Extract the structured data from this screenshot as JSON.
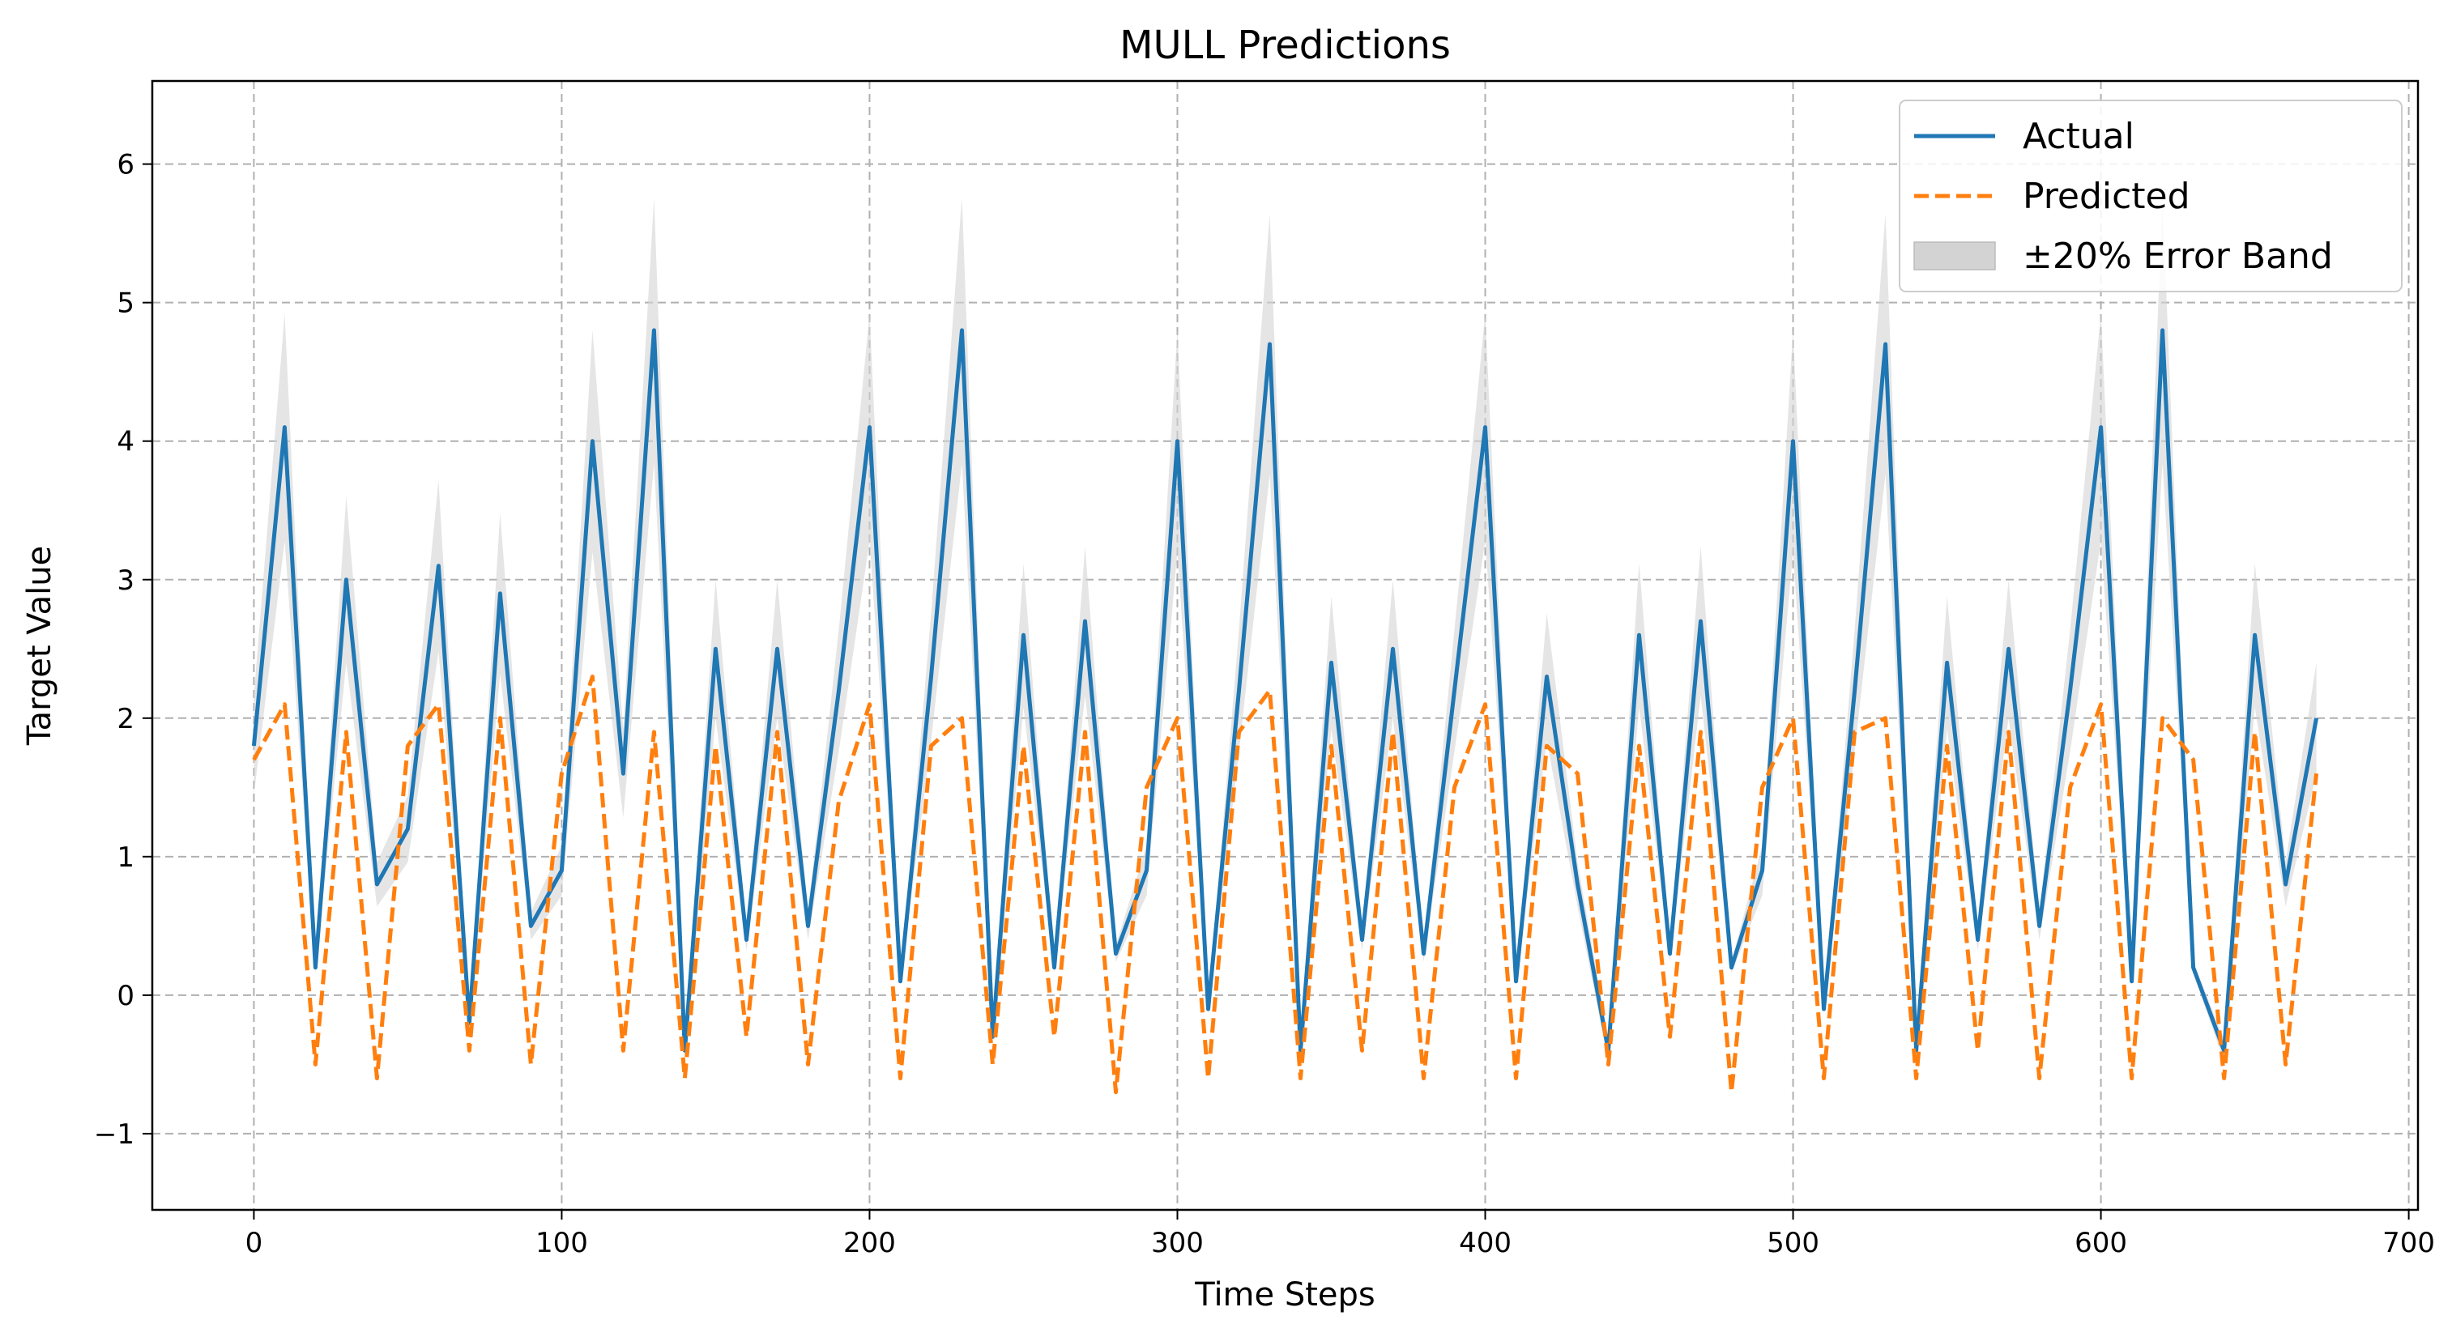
{
  "chart_data": {
    "type": "line",
    "title": "MULL Predictions",
    "xlabel": "Time Steps",
    "ylabel": "Target Value",
    "xlim": [
      -33,
      703
    ],
    "ylim": [
      -1.55,
      6.6
    ],
    "xticks": [
      0,
      100,
      200,
      300,
      400,
      500,
      600,
      700
    ],
    "yticks": [
      -1,
      0,
      1,
      2,
      3,
      4,
      5,
      6
    ],
    "ytick_labels": [
      "−1",
      "0",
      "1",
      "2",
      "3",
      "4",
      "5",
      "6"
    ],
    "grid": true,
    "legend_position": "top-right",
    "colors": {
      "actual": "#1f77b4",
      "predicted": "#ff7f0e",
      "band": "#d3d3d3"
    },
    "legend": [
      "Actual",
      "Predicted",
      "±20% Error Band"
    ],
    "x": [
      0,
      10,
      20,
      30,
      40,
      50,
      60,
      70,
      80,
      90,
      100,
      110,
      120,
      130,
      140,
      150,
      160,
      170,
      180,
      190,
      200,
      210,
      220,
      230,
      240,
      250,
      260,
      270,
      280,
      290,
      300,
      310,
      320,
      330,
      340,
      350,
      360,
      370,
      380,
      390,
      400,
      410,
      420,
      430,
      440,
      450,
      460,
      470,
      480,
      490,
      500,
      510,
      520,
      530,
      540,
      550,
      560,
      570,
      580,
      590,
      600,
      610,
      620,
      630,
      640,
      650,
      660,
      670
    ],
    "series": [
      {
        "name": "Actual",
        "style": "solid",
        "values": [
          1.8,
          4.1,
          0.2,
          3.0,
          0.8,
          1.2,
          3.1,
          -0.2,
          2.9,
          0.5,
          0.9,
          4.0,
          1.6,
          4.8,
          -0.4,
          2.5,
          0.4,
          2.5,
          0.5,
          2.2,
          4.1,
          0.1,
          2.3,
          4.8,
          -0.3,
          2.6,
          0.2,
          2.7,
          0.3,
          0.9,
          4.0,
          -0.1,
          2.2,
          4.7,
          -0.4,
          2.4,
          0.4,
          2.5,
          0.3,
          2.2,
          4.1,
          0.1,
          2.3,
          0.8,
          -0.4,
          2.6,
          0.3,
          2.7,
          0.2,
          0.9,
          4.0,
          -0.1,
          2.2,
          4.7,
          -0.4,
          2.4,
          0.4,
          2.5,
          0.5,
          2.2,
          4.1,
          0.1,
          4.8,
          0.2,
          -0.4,
          2.6,
          0.8,
          2.0
        ]
      },
      {
        "name": "Predicted",
        "style": "dashed",
        "values": [
          1.7,
          2.1,
          -0.5,
          1.9,
          -0.6,
          1.8,
          2.1,
          -0.4,
          2.0,
          -0.5,
          1.6,
          2.3,
          -0.4,
          1.9,
          -0.6,
          1.8,
          -0.3,
          1.9,
          -0.5,
          1.4,
          2.1,
          -0.6,
          1.8,
          2.0,
          -0.5,
          1.8,
          -0.3,
          1.9,
          -0.7,
          1.5,
          2.0,
          -0.6,
          1.9,
          2.2,
          -0.6,
          1.8,
          -0.4,
          1.9,
          -0.6,
          1.5,
          2.1,
          -0.6,
          1.8,
          1.6,
          -0.5,
          1.8,
          -0.3,
          1.9,
          -0.7,
          1.5,
          2.0,
          -0.6,
          1.9,
          2.0,
          -0.6,
          1.8,
          -0.4,
          1.9,
          -0.6,
          1.5,
          2.1,
          -0.6,
          2.0,
          1.7,
          -0.6,
          1.9,
          -0.5,
          1.6
        ]
      }
    ],
    "band": {
      "name": "±20% Error Band",
      "relative_width": 0.2
    }
  }
}
